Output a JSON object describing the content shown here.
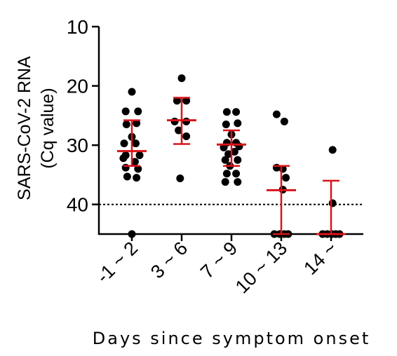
{
  "chart_data": {
    "type": "scatter",
    "title": "",
    "ylabel_line1": "SARS-CoV-2 RNA",
    "ylabel_line2": "(Cq value)",
    "xlabel": "Days since symptom onset",
    "y_reversed": true,
    "ylim": [
      45,
      10
    ],
    "yticks": [
      10,
      20,
      30,
      40
    ],
    "ytick_labels": [
      "10",
      "20",
      "30",
      "40"
    ],
    "categories": [
      "-1 ~ 2",
      "3 ~ 6",
      "7 ~ 9",
      "10 ~ 13",
      "14 ~"
    ],
    "reference_line": {
      "y": 40,
      "style": "dotted"
    },
    "groups": [
      {
        "category": "-1 ~ 2",
        "points": [
          [
            0,
            21.0
          ],
          [
            -0.4,
            24.3
          ],
          [
            0.4,
            24.3
          ],
          [
            -0.35,
            26.5
          ],
          [
            0.3,
            26.3
          ],
          [
            0,
            28.6
          ],
          [
            -0.5,
            29.7
          ],
          [
            0.25,
            29.7
          ],
          [
            -0.4,
            31.7
          ],
          [
            0.5,
            31.7
          ],
          [
            -0.55,
            32.2
          ],
          [
            0.2,
            32.8
          ],
          [
            -0.4,
            33.8
          ],
          [
            0.4,
            34.0
          ],
          [
            -0.3,
            35.3
          ],
          [
            0.3,
            35.5
          ],
          [
            0,
            45.0
          ]
        ],
        "median": 31.0,
        "q1": 25.8,
        "q3": 33.5
      },
      {
        "category": "3 ~ 6",
        "points": [
          [
            0,
            18.7
          ],
          [
            -0.3,
            22.5
          ],
          [
            0.3,
            22.5
          ],
          [
            -0.45,
            26.0
          ],
          [
            0.3,
            26.0
          ],
          [
            -0.2,
            27.5
          ],
          [
            0.3,
            28.5
          ],
          [
            -0.1,
            35.6
          ]
        ],
        "median": 25.8,
        "q1": 22.0,
        "q3": 29.8
      },
      {
        "category": "7 ~ 9",
        "points": [
          [
            -0.3,
            24.4
          ],
          [
            0.3,
            24.4
          ],
          [
            0.4,
            26.3
          ],
          [
            -0.35,
            26.5
          ],
          [
            0,
            28.2
          ],
          [
            -0.3,
            29.6
          ],
          [
            0.3,
            29.6
          ],
          [
            0.5,
            30.2
          ],
          [
            -0.5,
            30.4
          ],
          [
            0.2,
            31.1
          ],
          [
            -0.2,
            31.5
          ],
          [
            -0.4,
            32.5
          ],
          [
            0.4,
            32.5
          ],
          [
            -0.1,
            33.5
          ],
          [
            -0.3,
            34.8
          ],
          [
            0.3,
            34.8
          ],
          [
            -0.4,
            36.2
          ],
          [
            0.4,
            36.2
          ]
        ],
        "median": 29.9,
        "q1": 27.5,
        "q3": 33.5
      },
      {
        "category": "10 ~ 13",
        "points": [
          [
            -0.3,
            24.8
          ],
          [
            0.2,
            26.0
          ],
          [
            -0.3,
            33.8
          ],
          [
            0.1,
            34.0
          ],
          [
            0.3,
            35.5
          ],
          [
            0.1,
            37.5
          ],
          [
            -0.45,
            45.0
          ],
          [
            -0.1,
            45.0
          ],
          [
            0.2,
            45.0
          ],
          [
            0.45,
            45.0
          ]
        ],
        "median": 37.6,
        "q1": 33.5,
        "q3": 45.0
      },
      {
        "category": "14 ~",
        "points": [
          [
            0.1,
            30.8
          ],
          [
            0.1,
            39.8
          ],
          [
            -0.55,
            45.0
          ],
          [
            -0.25,
            45.0
          ],
          [
            0.05,
            45.0
          ],
          [
            0.3,
            45.0
          ],
          [
            0.55,
            45.0
          ]
        ],
        "median": 45.0,
        "q1": 36.0,
        "q3": 45.0
      }
    ]
  },
  "colors": {
    "points": "#000000",
    "summary": "#d9141b",
    "axis": "#000000"
  }
}
